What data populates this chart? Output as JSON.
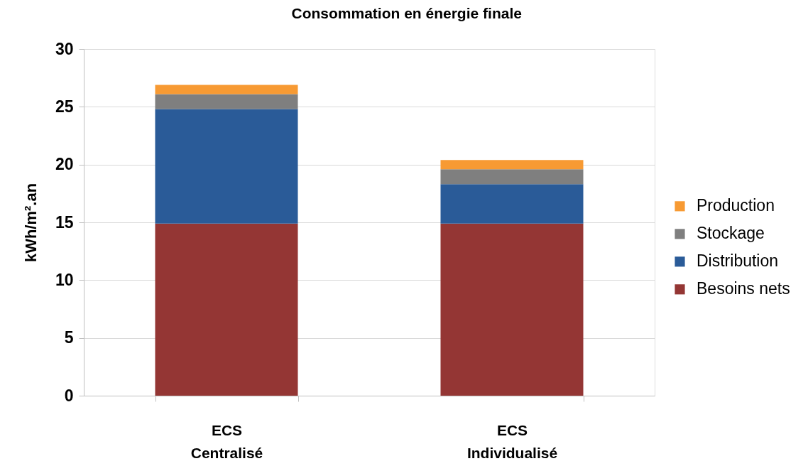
{
  "chart_data": {
    "type": "bar",
    "title": "Consommation en énergie finale",
    "ylabel": "kWh/m².an",
    "categories": [
      "ECS\nCentralisé",
      "ECS\nIndividualisé"
    ],
    "stacked": true,
    "series": [
      {
        "name": "Besoins nets",
        "color": "#943634",
        "values": [
          14.9,
          14.9
        ]
      },
      {
        "name": "Distribution",
        "color": "#2a5b98",
        "values": [
          9.9,
          3.4
        ]
      },
      {
        "name": "Stockage",
        "color": "#7f7f7f",
        "values": [
          1.3,
          1.3
        ]
      },
      {
        "name": "Production",
        "color": "#f79a33",
        "values": [
          0.8,
          0.8
        ]
      }
    ],
    "ylim": [
      0,
      30
    ],
    "yticks": [
      0,
      5,
      10,
      15,
      20,
      25,
      30
    ],
    "grid": "y",
    "legend": "right"
  }
}
